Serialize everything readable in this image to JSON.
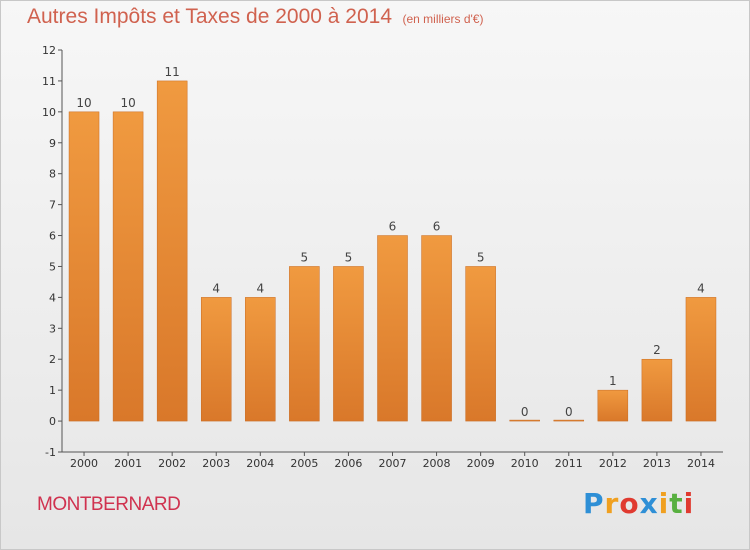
{
  "header": {
    "title": "Autres Impôts et Taxes de 2000 à 2014",
    "subtitle": "(en milliers d'€)"
  },
  "footer": {
    "commune": "MONTBERNARD",
    "brand_letters": [
      "P",
      "r",
      "o",
      "x",
      "i",
      "t",
      "i"
    ],
    "brand_colors": [
      "#2e8fd6",
      "#f0a020",
      "#e03a30",
      "#2e8fd6",
      "#f0a020",
      "#58b040",
      "#e03a30"
    ]
  },
  "chart_data": {
    "type": "bar",
    "title": "Autres Impôts et Taxes de 2000 à 2014",
    "subtitle": "(en milliers d'€)",
    "categories": [
      "2000",
      "2001",
      "2002",
      "2003",
      "2004",
      "2005",
      "2006",
      "2007",
      "2008",
      "2009",
      "2010",
      "2011",
      "2012",
      "2013",
      "2014"
    ],
    "values": [
      10,
      10,
      11,
      4,
      4,
      5,
      5,
      6,
      6,
      5,
      0,
      0,
      1,
      2,
      4
    ],
    "yticks": [
      "-1",
      "0",
      "1",
      "2",
      "3",
      "4",
      "5",
      "6",
      "7",
      "8",
      "9",
      "10",
      "11",
      "12"
    ],
    "ylim": [
      -1,
      12
    ],
    "bar_color": "#f09a40",
    "bar_color_dark": "#d9782a",
    "grid": false,
    "legend": "none"
  }
}
